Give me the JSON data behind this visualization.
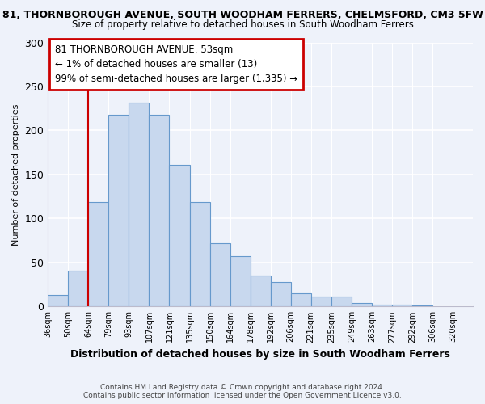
{
  "title_line1": "81, THORNBOROUGH AVENUE, SOUTH WOODHAM FERRERS, CHELMSFORD, CM3 5FW",
  "title_line2": "Size of property relative to detached houses in South Woodham Ferrers",
  "xlabel": "Distribution of detached houses by size in South Woodham Ferrers",
  "ylabel": "Number of detached properties",
  "footer_line1": "Contains HM Land Registry data © Crown copyright and database right 2024.",
  "footer_line2": "Contains public sector information licensed under the Open Government Licence v3.0.",
  "bar_labels": [
    "36sqm",
    "50sqm",
    "64sqm",
    "79sqm",
    "93sqm",
    "107sqm",
    "121sqm",
    "135sqm",
    "150sqm",
    "164sqm",
    "178sqm",
    "192sqm",
    "206sqm",
    "221sqm",
    "235sqm",
    "249sqm",
    "263sqm",
    "277sqm",
    "292sqm",
    "306sqm",
    "320sqm"
  ],
  "bar_heights": [
    13,
    41,
    119,
    218,
    232,
    218,
    161,
    119,
    72,
    57,
    35,
    28,
    15,
    11,
    11,
    4,
    2,
    2,
    1,
    0,
    0
  ],
  "bar_color": "#c8d8ee",
  "bar_edge_color": "#6699cc",
  "annotation_line1": "81 THORNBOROUGH AVENUE: 53sqm",
  "annotation_line2": "← 1% of detached houses are smaller (13)",
  "annotation_line3": "99% of semi-detached houses are larger (1,335) →",
  "ylim": [
    0,
    300
  ],
  "yticks": [
    0,
    50,
    100,
    150,
    200,
    250,
    300
  ],
  "background_color": "#eef2fa",
  "grid_color": "#ffffff",
  "title1_fontsize": 9,
  "title2_fontsize": 8.5,
  "ann_fontsize": 8.5,
  "ylabel_fontsize": 8,
  "xlabel_fontsize": 9
}
